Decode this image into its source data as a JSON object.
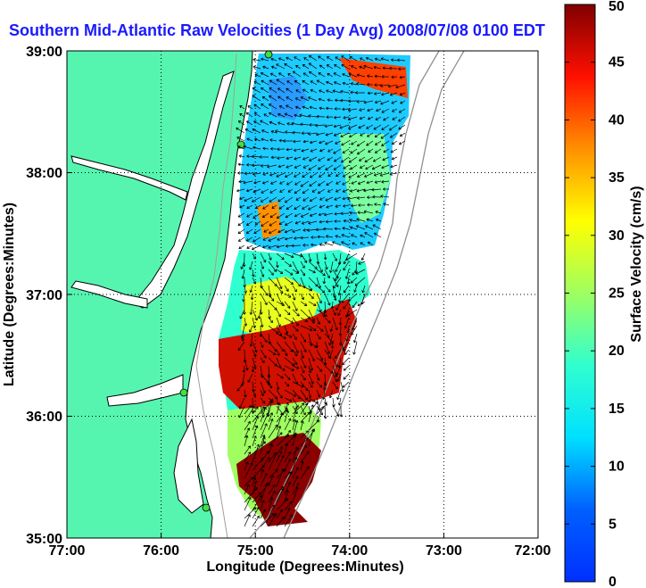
{
  "title": "Southern Mid-Atlantic Raw Velocities (1 Day Avg) 2008/07/08 0100 EDT",
  "xlabel": "Longitude (Degrees:Minutes)",
  "ylabel": "Latitude (Degrees:Minutes)",
  "x_ticks": [
    "77:00",
    "76:00",
    "75:00",
    "74:00",
    "73:00",
    "72:00"
  ],
  "y_ticks": [
    "39:00",
    "38:00",
    "37:00",
    "36:00",
    "35:00"
  ],
  "colorbar": {
    "label": "Surface Velocity (cm/s)",
    "ticks": [
      "0",
      "5",
      "10",
      "15",
      "20",
      "25",
      "30",
      "35",
      "40",
      "45",
      "50"
    ],
    "range": [
      0,
      50
    ],
    "colormap": "jet"
  },
  "map": {
    "lon_range": [
      -77,
      -72
    ],
    "lat_range": [
      35,
      39
    ],
    "land_color": "#55f5b0",
    "grid": "dotted",
    "vectors": "black arrows"
  }
}
